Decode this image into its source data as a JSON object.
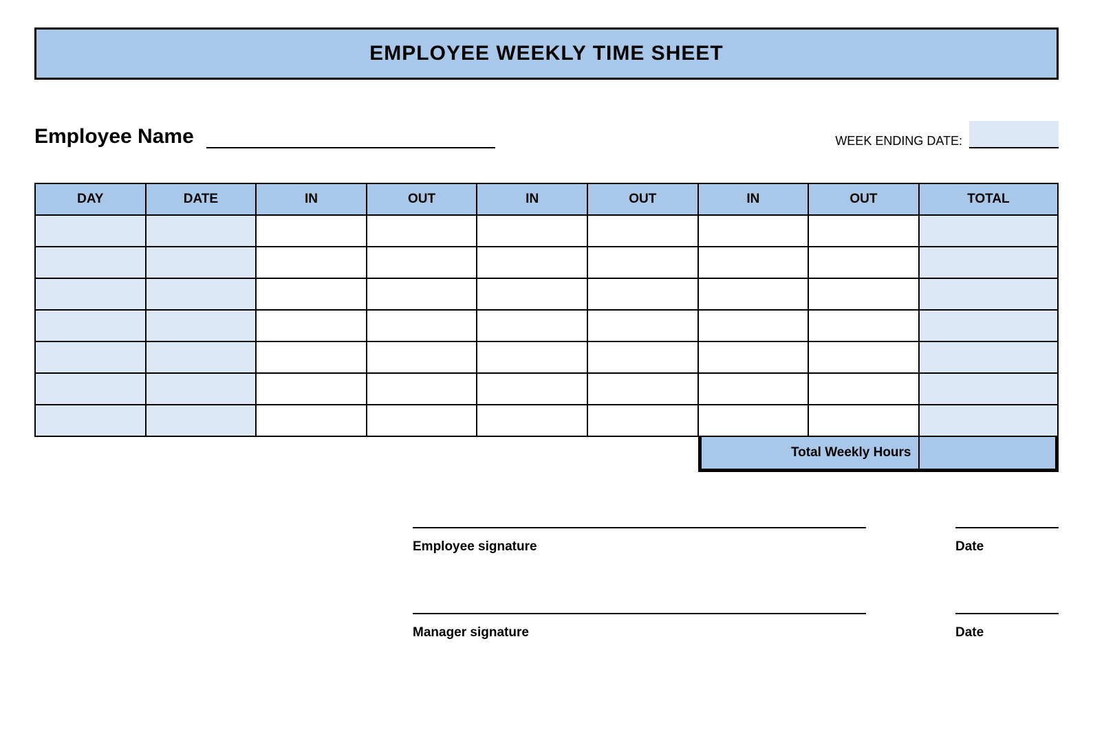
{
  "title": "EMPLOYEE WEEKLY TIME SHEET",
  "employee_name_label": "Employee Name",
  "employee_name_value": "",
  "week_ending_label": "WEEK ENDING DATE:",
  "week_ending_value": "",
  "columns": [
    "DAY",
    "DATE",
    "IN",
    "OUT",
    "IN",
    "OUT",
    "IN",
    "OUT",
    "TOTAL"
  ],
  "rows": [
    [
      "",
      "",
      "",
      "",
      "",
      "",
      "",
      "",
      ""
    ],
    [
      "",
      "",
      "",
      "",
      "",
      "",
      "",
      "",
      ""
    ],
    [
      "",
      "",
      "",
      "",
      "",
      "",
      "",
      "",
      ""
    ],
    [
      "",
      "",
      "",
      "",
      "",
      "",
      "",
      "",
      ""
    ],
    [
      "",
      "",
      "",
      "",
      "",
      "",
      "",
      "",
      ""
    ],
    [
      "",
      "",
      "",
      "",
      "",
      "",
      "",
      "",
      ""
    ],
    [
      "",
      "",
      "",
      "",
      "",
      "",
      "",
      "",
      ""
    ]
  ],
  "total_weekly_label": "Total Weekly Hours",
  "total_weekly_value": "",
  "signatures": {
    "employee_label": "Employee signature",
    "employee_date_label": "Date",
    "manager_label": "Manager signature",
    "manager_date_label": "Date"
  },
  "style": {
    "title_bg": "#a9c7e8",
    "header_bg": "#a9c7e8",
    "shaded_cell_bg": "#dce8f6",
    "total_row_bg": "#a9c7e8",
    "week_ending_box_bg": "#dce8f6",
    "border_color": "#000000",
    "col_widths_pct": [
      10.8,
      10.8,
      10.8,
      10.8,
      10.8,
      10.8,
      10.8,
      10.8,
      13.6
    ]
  }
}
